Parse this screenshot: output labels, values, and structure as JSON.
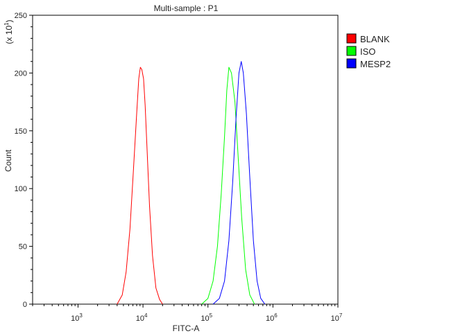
{
  "chart_data": {
    "type": "line",
    "title": "Multi-sample : P1",
    "xlabel": "FITC-A",
    "ylabel": "Count",
    "ylabel_scale": "(x 10^1)",
    "x_scale": "log",
    "xlim": [
      200,
      10000000
    ],
    "ylim": [
      0,
      250
    ],
    "x_ticks": [
      {
        "value": 1000,
        "base": "10",
        "exp": "3"
      },
      {
        "value": 10000,
        "base": "10",
        "exp": "4"
      },
      {
        "value": 100000,
        "base": "10",
        "exp": "5"
      },
      {
        "value": 1000000,
        "base": "10",
        "exp": "6"
      },
      {
        "value": 10000000,
        "base": "10",
        "exp": "7"
      }
    ],
    "y_ticks": [
      "0",
      "50",
      "100",
      "150",
      "200",
      "250"
    ],
    "legend_position": "top-right",
    "series": [
      {
        "name": "BLANK",
        "color": "#ff0000",
        "x": [
          4000,
          4800,
          5500,
          6300,
          7100,
          8000,
          8600,
          9100,
          9600,
          10200,
          10800,
          11600,
          12600,
          14000,
          15800,
          18000,
          20000
        ],
        "y": [
          0,
          8,
          28,
          65,
          115,
          165,
          195,
          205,
          203,
          195,
          172,
          132,
          85,
          42,
          14,
          4,
          0
        ]
      },
      {
        "name": "ISO",
        "color": "#00ff00",
        "x": [
          80000,
          100000,
          120000,
          140000,
          160000,
          180000,
          195000,
          210000,
          230000,
          260000,
          290000,
          330000,
          380000,
          440000,
          520000
        ],
        "y": [
          0,
          5,
          20,
          50,
          95,
          145,
          185,
          205,
          200,
          175,
          130,
          75,
          30,
          8,
          0
        ]
      },
      {
        "name": "MESP2",
        "color": "#0000ff",
        "x": [
          120000,
          150000,
          180000,
          210000,
          240000,
          270000,
          300000,
          325000,
          350000,
          390000,
          440000,
          500000,
          570000,
          650000,
          750000
        ],
        "y": [
          0,
          5,
          20,
          55,
          105,
          160,
          200,
          210,
          200,
          165,
          110,
          55,
          20,
          5,
          0
        ]
      }
    ]
  }
}
